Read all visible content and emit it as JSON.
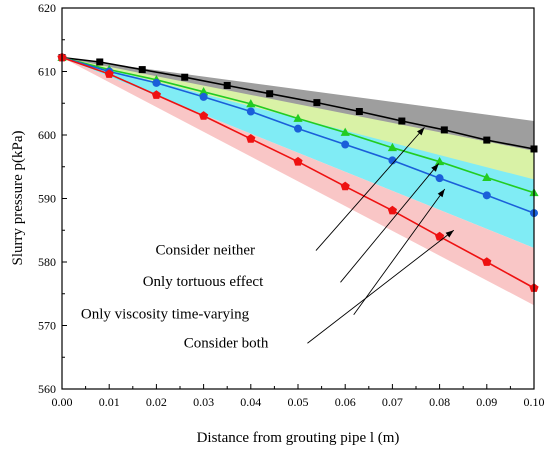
{
  "chart_data": {
    "type": "line",
    "title": "",
    "xlabel": "Distance from grouting pipe  l (m)",
    "ylabel": "Slurry pressure p(kPa)",
    "xlim": [
      0.0,
      0.1
    ],
    "ylim": [
      560,
      620
    ],
    "x_ticks": [
      "0.00",
      "0.01",
      "0.02",
      "0.03",
      "0.04",
      "0.05",
      "0.06",
      "0.07",
      "0.08",
      "0.09",
      "0.10"
    ],
    "y_ticks": [
      "560",
      "570",
      "580",
      "590",
      "600",
      "610",
      "620"
    ],
    "grid": false,
    "series": [
      {
        "key": "neither",
        "color": "#000000",
        "marker": "square",
        "x": [
          0.0,
          0.008,
          0.017,
          0.026,
          0.035,
          0.044,
          0.054,
          0.063,
          0.072,
          0.081,
          0.09,
          0.1
        ],
        "values": [
          612.2,
          611.5,
          610.3,
          609.1,
          607.8,
          606.5,
          605.1,
          603.7,
          602.2,
          600.8,
          599.2,
          597.8
        ],
        "band_upper": [
          612.2,
          602.2
        ],
        "band_lower": [
          612.2,
          593.0
        ],
        "band_color": "#9e9e9e"
      },
      {
        "key": "tortuous",
        "color": "#22cc22",
        "marker": "triangle",
        "x": [
          0.0,
          0.01,
          0.02,
          0.03,
          0.04,
          0.05,
          0.06,
          0.07,
          0.08,
          0.09,
          0.1
        ],
        "values": [
          612.2,
          610.3,
          608.7,
          606.8,
          604.9,
          602.6,
          600.4,
          598.0,
          595.8,
          593.3,
          590.9
        ],
        "band_upper": [
          612.2,
          597.5
        ],
        "band_lower": [
          612.2,
          585.5
        ],
        "band_color": "#d9f2a6"
      },
      {
        "key": "viscosity",
        "color": "#1a5fd9",
        "marker": "circle",
        "x": [
          0.0,
          0.01,
          0.02,
          0.03,
          0.04,
          0.05,
          0.06,
          0.07,
          0.08,
          0.09,
          0.1
        ],
        "values": [
          612.2,
          610.0,
          608.2,
          606.0,
          603.7,
          601.0,
          598.5,
          596.0,
          593.2,
          590.5,
          587.7
        ],
        "band_upper": [
          612.2,
          593.0
        ],
        "band_lower": [
          612.2,
          582.2
        ],
        "band_color": "#80ecf5"
      },
      {
        "key": "both",
        "color": "#ee1111",
        "marker": "pentagon",
        "x": [
          0.0,
          0.01,
          0.02,
          0.03,
          0.04,
          0.05,
          0.06,
          0.07,
          0.08,
          0.09,
          0.1
        ],
        "values": [
          612.2,
          609.6,
          606.3,
          603.0,
          599.4,
          595.8,
          591.9,
          588.1,
          584.0,
          580.0,
          575.9
        ],
        "band_upper": [
          612.2,
          582.2
        ],
        "band_lower": [
          612.2,
          573.2
        ],
        "band_color": "#f9c6c6"
      }
    ],
    "annotations": [
      {
        "text": "Consider neither",
        "text_x": 0.0198,
        "text_y": 581.2,
        "arrow_from_x": 0.0538,
        "arrow_from_y": 581.8,
        "arrow_to_x": 0.0768,
        "arrow_to_y": 601.2
      },
      {
        "text": "Only tortuous effect",
        "text_x": 0.0171,
        "text_y": 576.2,
        "arrow_from_x": 0.059,
        "arrow_from_y": 576.8,
        "arrow_to_x": 0.0798,
        "arrow_to_y": 595.5
      },
      {
        "text": "Only viscosity time-varying",
        "text_x": 0.004,
        "text_y": 571.1,
        "arrow_from_x": 0.0618,
        "arrow_from_y": 571.7,
        "arrow_to_x": 0.0811,
        "arrow_to_y": 591.5
      },
      {
        "text": "Consider both",
        "text_x": 0.0258,
        "text_y": 566.5,
        "arrow_from_x": 0.052,
        "arrow_from_y": 567.2,
        "arrow_to_x": 0.083,
        "arrow_to_y": 585.0
      }
    ]
  }
}
